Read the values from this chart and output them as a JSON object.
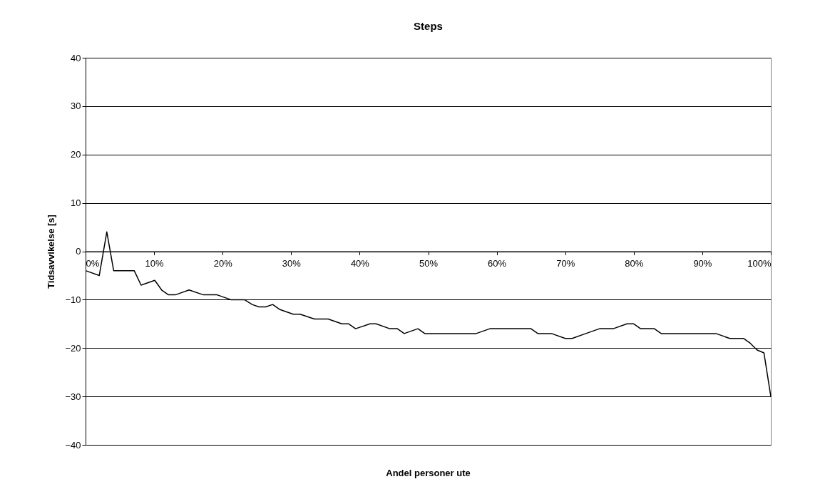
{
  "chart_data": {
    "type": "line",
    "title": "Steps",
    "xlabel": "Andel personer ute",
    "ylabel": "Tidsavvikelse [s]",
    "series": [
      {
        "color": "#000000",
        "x": [
          0,
          2.0,
          3.1,
          4.1,
          7.1,
          8.1,
          10.1,
          11.1,
          12.1,
          13.1,
          15.1,
          17.2,
          19.2,
          21.2,
          23.2,
          24.3,
          25.3,
          26.3,
          27.3,
          28.3,
          30.3,
          31.3,
          33.4,
          35.4,
          37.4,
          38.4,
          39.4,
          41.5,
          42.4,
          44.4,
          45.5,
          46.5,
          48.5,
          49.5,
          57,
          59,
          65,
          66,
          68,
          70,
          71,
          73,
          75,
          77,
          79,
          80,
          81,
          83,
          84,
          92,
          94,
          96,
          97,
          98,
          99,
          100
        ],
        "values": [
          -4,
          -5,
          4,
          -4,
          -4,
          -7,
          -6,
          -8,
          -9,
          -9,
          -8,
          -9,
          -9,
          -10,
          -10,
          -11,
          -11.5,
          -11.5,
          -11,
          -12,
          -13,
          -13,
          -14,
          -14,
          -15,
          -15,
          -16,
          -15,
          -15,
          -16,
          -16,
          -17,
          -16,
          -17,
          -17,
          -16,
          -16,
          -17,
          -17,
          -18,
          -18,
          -17,
          -16,
          -16,
          -15,
          -15,
          -16,
          -16,
          -17,
          -17,
          -18,
          -18,
          -19,
          -20.4,
          -21,
          -30
        ]
      }
    ],
    "xlim": [
      0,
      100
    ],
    "ylim": [
      -40,
      40
    ],
    "xticks": [
      {
        "value": 0,
        "label": "0%"
      },
      {
        "value": 10,
        "label": "10%"
      },
      {
        "value": 20,
        "label": "20%"
      },
      {
        "value": 30,
        "label": "30%"
      },
      {
        "value": 40,
        "label": "40%"
      },
      {
        "value": 50,
        "label": "50%"
      },
      {
        "value": 60,
        "label": "60%"
      },
      {
        "value": 70,
        "label": "70%"
      },
      {
        "value": 80,
        "label": "80%"
      },
      {
        "value": 90,
        "label": "90%"
      },
      {
        "value": 100,
        "label": "100%"
      }
    ],
    "yticks": [
      -40,
      -30,
      -20,
      -10,
      0,
      10,
      20,
      30,
      40
    ],
    "grid": "y",
    "marker": "none",
    "line_style": "solid"
  }
}
